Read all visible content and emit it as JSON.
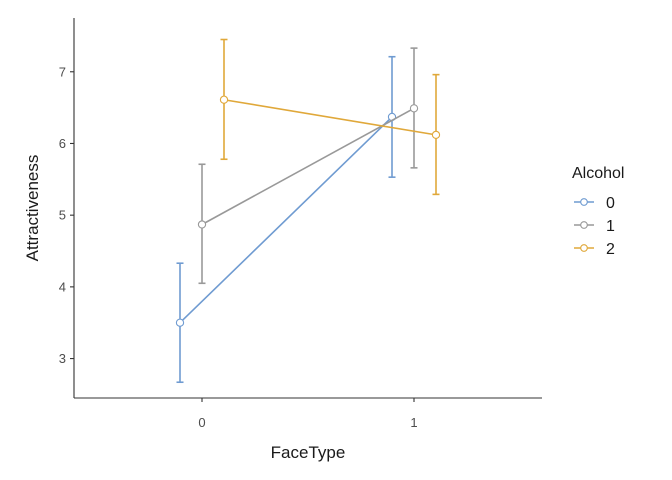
{
  "chart_data": {
    "type": "line",
    "xlabel": "FaceType",
    "ylabel": "Attractiveness",
    "categories": [
      "0",
      "1"
    ],
    "ylim": [
      2.45,
      7.75
    ],
    "yticks": [
      3,
      4,
      5,
      6,
      7
    ],
    "grid": false,
    "legend": {
      "title": "Alcohol",
      "position": "right"
    },
    "error_bars": true,
    "series": [
      {
        "name": "0",
        "color": "#6F9BD1",
        "values": [
          3.5,
          6.37
        ],
        "lower": [
          2.67,
          5.53
        ],
        "upper": [
          4.33,
          7.21
        ]
      },
      {
        "name": "1",
        "color": "#999999",
        "values": [
          4.87,
          6.49
        ],
        "lower": [
          4.05,
          5.66
        ],
        "upper": [
          5.71,
          7.33
        ]
      },
      {
        "name": "2",
        "color": "#E0A83A",
        "values": [
          6.61,
          6.12
        ],
        "lower": [
          5.78,
          5.29
        ],
        "upper": [
          7.45,
          6.96
        ]
      }
    ]
  }
}
